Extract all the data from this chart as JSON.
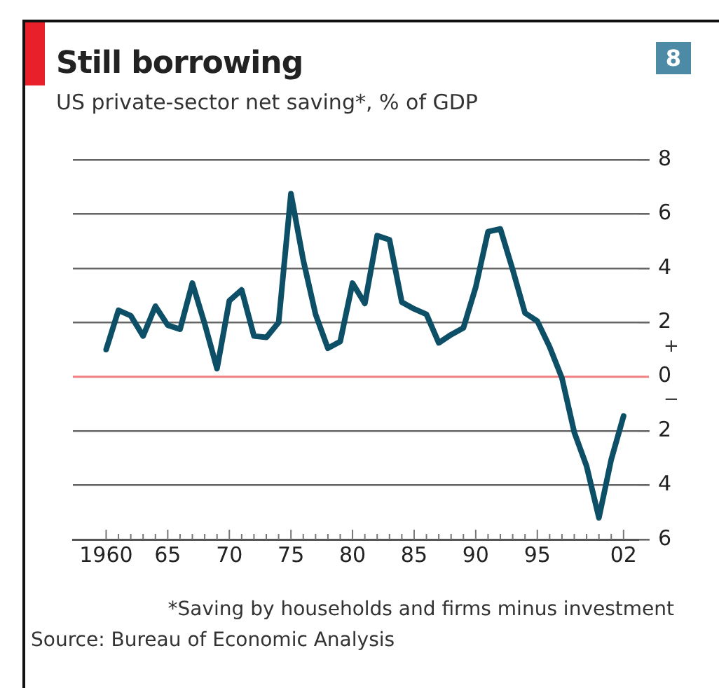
{
  "chart_data": {
    "type": "line",
    "title": "Still borrowing",
    "subtitle": "US private-sector net saving*, % of GDP",
    "x": [
      1960,
      1961,
      1962,
      1963,
      1964,
      1965,
      1966,
      1967,
      1968,
      1969,
      1970,
      1971,
      1972,
      1973,
      1974,
      1975,
      1976,
      1977,
      1978,
      1979,
      1980,
      1981,
      1982,
      1983,
      1984,
      1985,
      1986,
      1987,
      1988,
      1989,
      1990,
      1991,
      1992,
      1993,
      1994,
      1995,
      1996,
      1997,
      1998,
      1999,
      2000,
      2001,
      2002
    ],
    "series": [
      {
        "color": "#0d4f66",
        "values": [
          1.0,
          2.45,
          2.25,
          1.5,
          2.6,
          1.9,
          1.75,
          3.45,
          1.95,
          0.3,
          2.8,
          3.2,
          1.5,
          1.45,
          2.0,
          6.75,
          4.3,
          2.3,
          1.05,
          1.3,
          3.45,
          2.7,
          5.2,
          5.05,
          2.75,
          2.5,
          2.3,
          1.25,
          1.55,
          1.8,
          3.3,
          5.35,
          5.45,
          3.95,
          2.35,
          2.05,
          1.1,
          -0.05,
          -2.05,
          -3.3,
          -5.2,
          -3.05,
          -1.45
        ]
      }
    ],
    "xlim": [
      1957.3,
      2003.2
    ],
    "xticks": [
      {
        "value": 1960,
        "label": "1960"
      },
      {
        "value": 1961,
        "label": null
      },
      {
        "value": 1962,
        "label": null
      },
      {
        "value": 1963,
        "label": null
      },
      {
        "value": 1964,
        "label": null
      },
      {
        "value": 1965,
        "label": "65"
      },
      {
        "value": 1966,
        "label": null
      },
      {
        "value": 1967,
        "label": null
      },
      {
        "value": 1968,
        "label": null
      },
      {
        "value": 1969,
        "label": null
      },
      {
        "value": 1970,
        "label": "70"
      },
      {
        "value": 1971,
        "label": null
      },
      {
        "value": 1972,
        "label": null
      },
      {
        "value": 1973,
        "label": null
      },
      {
        "value": 1974,
        "label": null
      },
      {
        "value": 1975,
        "label": "75"
      },
      {
        "value": 1976,
        "label": null
      },
      {
        "value": 1977,
        "label": null
      },
      {
        "value": 1978,
        "label": null
      },
      {
        "value": 1979,
        "label": null
      },
      {
        "value": 1980,
        "label": "80"
      },
      {
        "value": 1981,
        "label": null
      },
      {
        "value": 1982,
        "label": null
      },
      {
        "value": 1983,
        "label": null
      },
      {
        "value": 1984,
        "label": null
      },
      {
        "value": 1985,
        "label": "85"
      },
      {
        "value": 1986,
        "label": null
      },
      {
        "value": 1987,
        "label": null
      },
      {
        "value": 1988,
        "label": null
      },
      {
        "value": 1989,
        "label": null
      },
      {
        "value": 1990,
        "label": "90"
      },
      {
        "value": 1991,
        "label": null
      },
      {
        "value": 1992,
        "label": null
      },
      {
        "value": 1993,
        "label": null
      },
      {
        "value": 1994,
        "label": null
      },
      {
        "value": 1995,
        "label": "95"
      },
      {
        "value": 1996,
        "label": null
      },
      {
        "value": 1997,
        "label": null
      },
      {
        "value": 1998,
        "label": null
      },
      {
        "value": 1999,
        "label": null
      },
      {
        "value": 2000,
        "label": null
      },
      {
        "value": 2001,
        "label": null
      },
      {
        "value": 2002,
        "label": "02"
      }
    ],
    "ylim": [
      -6,
      8
    ],
    "yticks": [
      8,
      6,
      4,
      2,
      0,
      {
        "value": -2,
        "label": "2"
      },
      {
        "value": -4,
        "label": "4"
      },
      {
        "value": -6,
        "label": "6"
      }
    ],
    "grid": "y",
    "legend": false,
    "marker": "none",
    "line_style": "solid",
    "ref_lines": [
      {
        "axis": "y",
        "value": 0,
        "color": "#f08080"
      }
    ],
    "annotations": [
      "+",
      "−",
      "*Saving by households and firms minus investment",
      "Source: Bureau of Economic Analysis",
      "8"
    ]
  }
}
